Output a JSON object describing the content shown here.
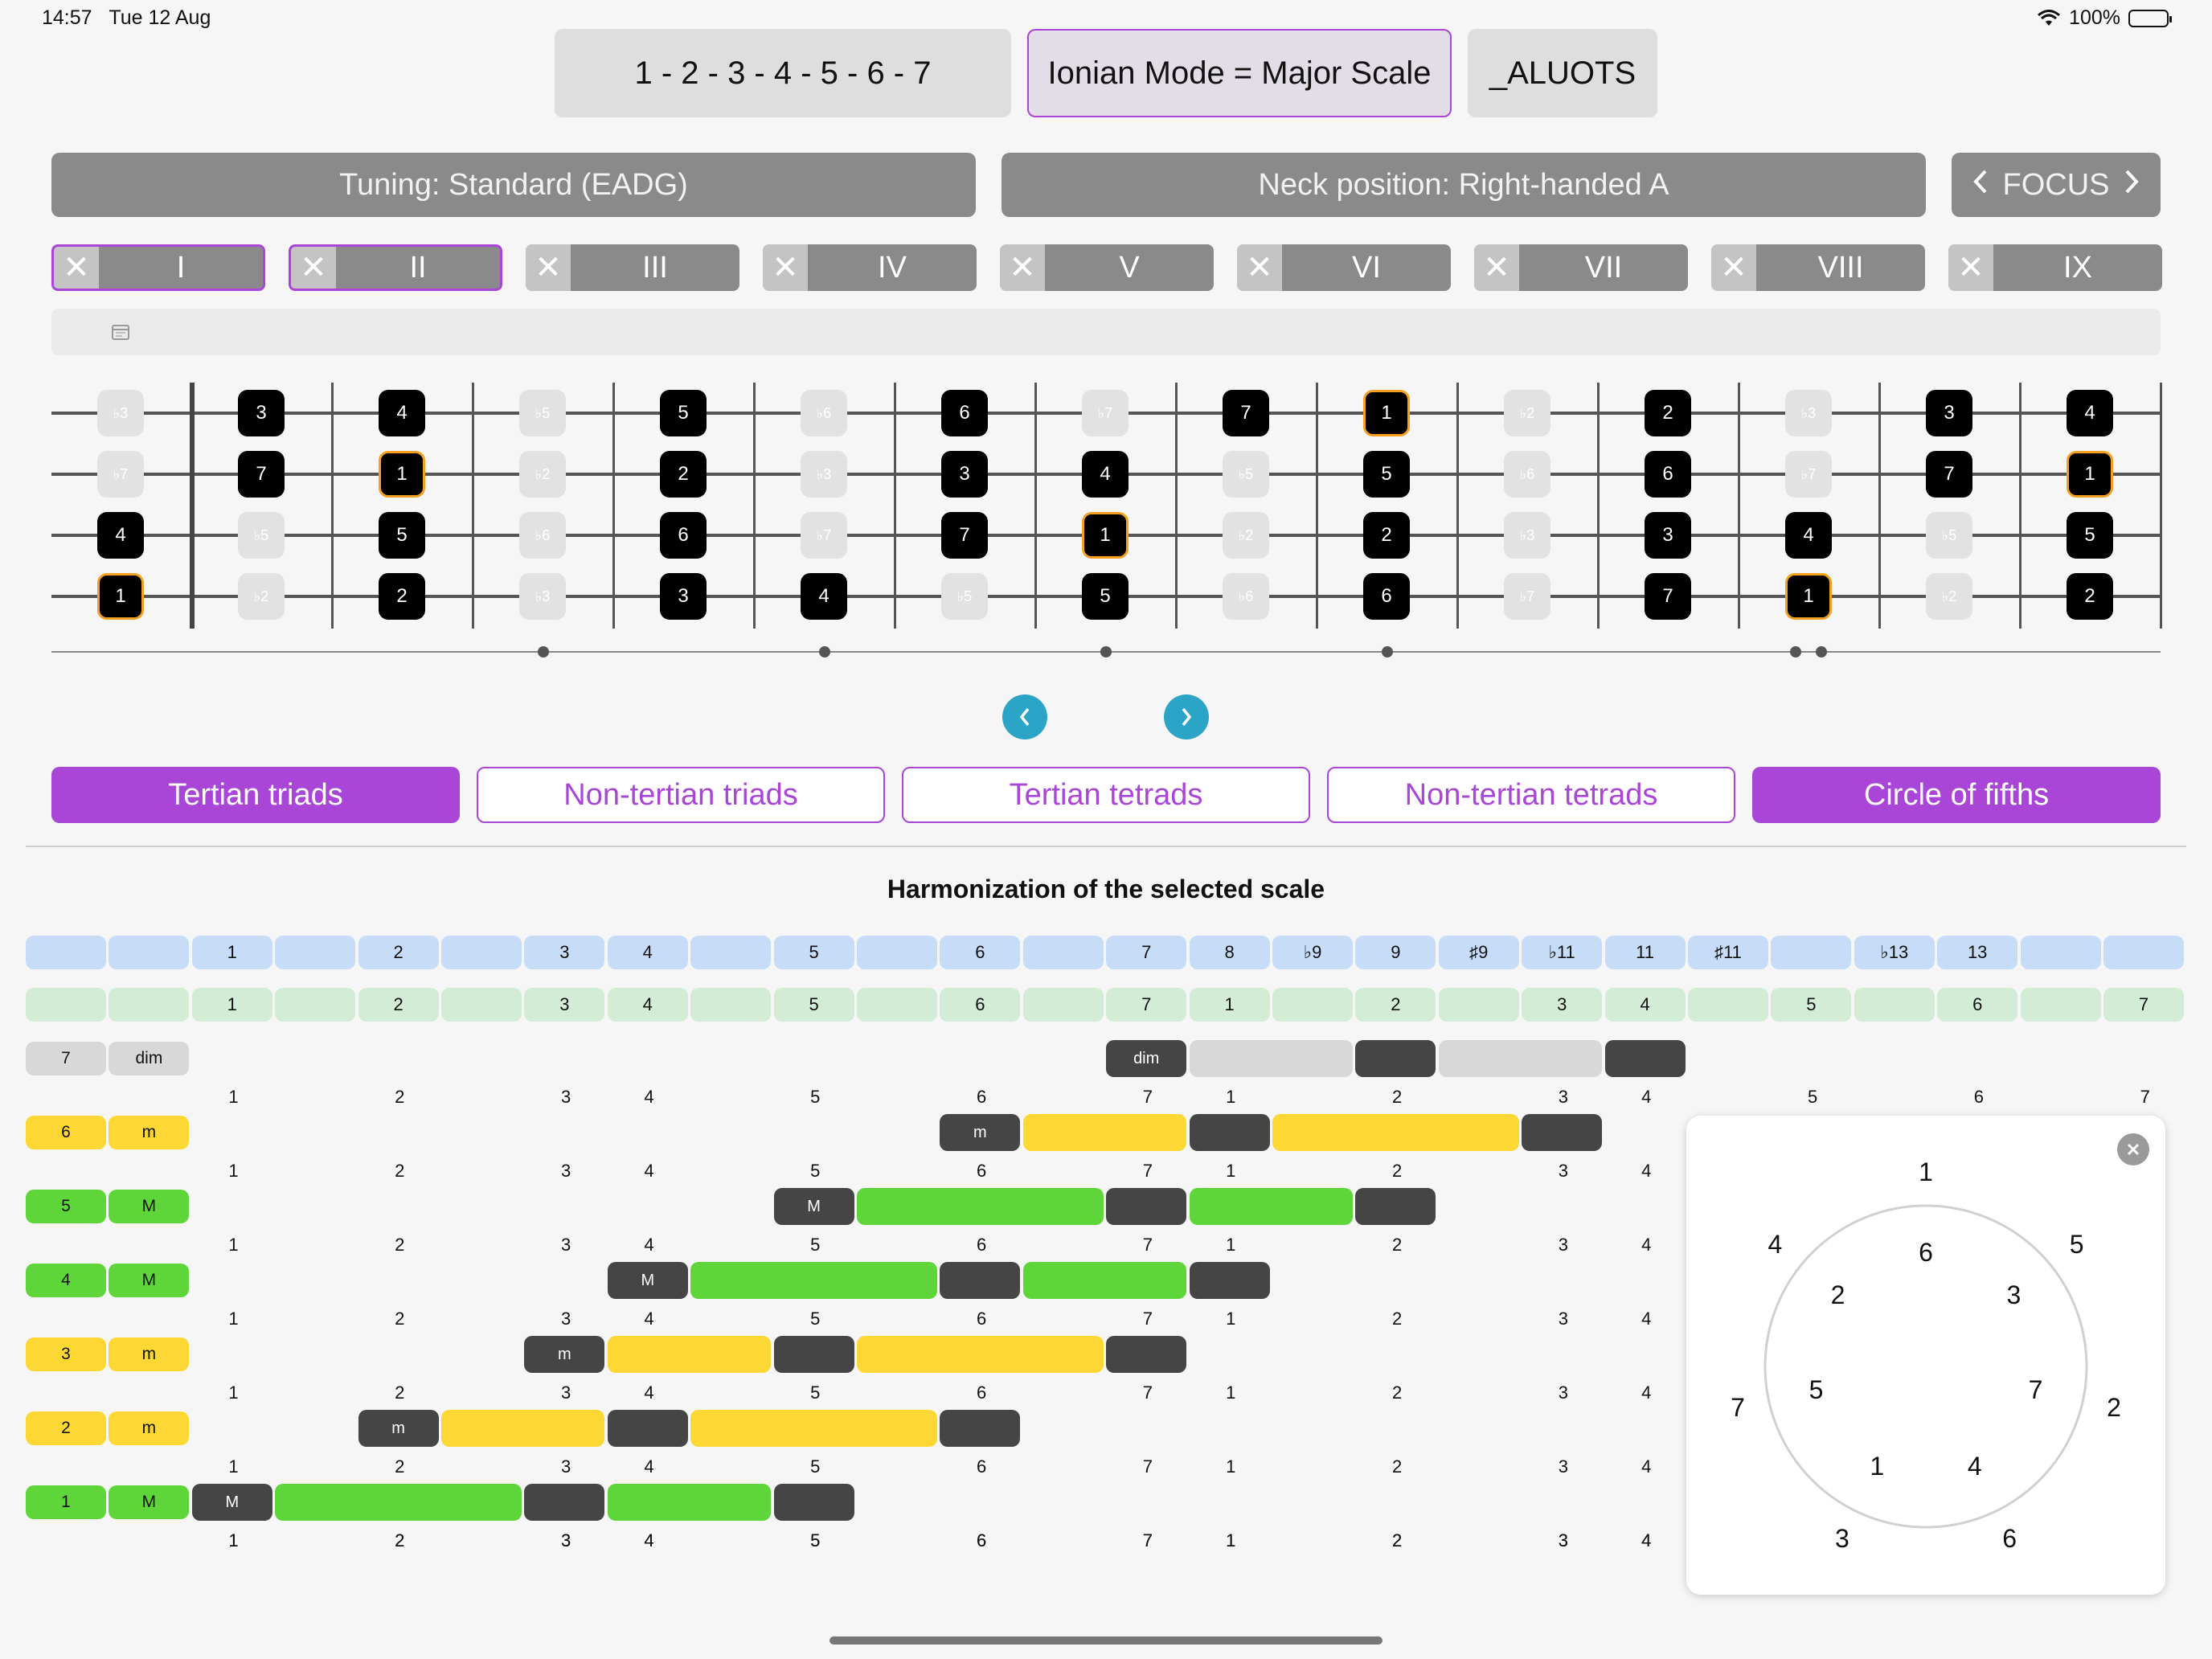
{
  "status": {
    "time": "14:57",
    "date": "Tue 12 Aug",
    "battery": "100%"
  },
  "top": {
    "formula": "1 - 2 - 3 - 4 - 5 - 6 - 7",
    "mode": "Ionian Mode = Major Scale",
    "aluots": "_ALUOTS"
  },
  "controls": {
    "tuning": "Tuning: Standard (EADG)",
    "neck": "Neck position: Right-handed A",
    "focus": "FOCUS"
  },
  "positions": [
    {
      "label": "I",
      "selected": true
    },
    {
      "label": "II",
      "selected": true
    },
    {
      "label": "III",
      "selected": false
    },
    {
      "label": "IV",
      "selected": false
    },
    {
      "label": "V",
      "selected": false
    },
    {
      "label": "VI",
      "selected": false
    },
    {
      "label": "VII",
      "selected": false
    },
    {
      "label": "VIII",
      "selected": false
    },
    {
      "label": "IX",
      "selected": false
    }
  ],
  "fretboard": {
    "strings": [
      [
        "♭3",
        "3",
        "4",
        "♭5",
        "5",
        "♭6",
        "6",
        "♭7",
        "7",
        "1",
        "♭2",
        "2",
        "♭3",
        "3",
        "4"
      ],
      [
        "♭7",
        "7",
        "1",
        "♭2",
        "2",
        "♭3",
        "3",
        "4",
        "♭5",
        "5",
        "♭6",
        "6",
        "♭7",
        "7",
        "1"
      ],
      [
        "4",
        "♭5",
        "5",
        "♭6",
        "6",
        "♭7",
        "7",
        "1",
        "♭2",
        "2",
        "♭3",
        "3",
        "4",
        "♭5",
        "5"
      ],
      [
        "1",
        "♭2",
        "2",
        "♭3",
        "3",
        "4",
        "♭5",
        "5",
        "♭6",
        "6",
        "♭7",
        "7",
        "1",
        "♭2",
        "2"
      ]
    ],
    "states": [
      [
        "off",
        "on",
        "on",
        "off",
        "on",
        "off",
        "on",
        "off",
        "on",
        "root",
        "off",
        "on",
        "off",
        "on",
        "on"
      ],
      [
        "off",
        "on",
        "root",
        "off",
        "on",
        "off",
        "on",
        "on",
        "off",
        "on",
        "off",
        "on",
        "off",
        "on",
        "root"
      ],
      [
        "on",
        "off",
        "on",
        "off",
        "on",
        "off",
        "on",
        "root",
        "off",
        "on",
        "off",
        "on",
        "on",
        "off",
        "on"
      ],
      [
        "root",
        "off",
        "on",
        "off",
        "on",
        "on",
        "off",
        "on",
        "off",
        "on",
        "off",
        "on",
        "root",
        "off",
        "on"
      ]
    ]
  },
  "tabs": [
    {
      "label": "Tertian triads",
      "active": true
    },
    {
      "label": "Non-tertian triads",
      "active": false
    },
    {
      "label": "Tertian tetrads",
      "active": false
    },
    {
      "label": "Non-tertian tetrads",
      "active": false
    },
    {
      "label": "Circle of fifths",
      "active": true
    }
  ],
  "harmonization": {
    "title": "Harmonization of the selected scale",
    "blue_row": [
      "",
      "",
      "1",
      "",
      "2",
      "",
      "3",
      "4",
      "",
      "5",
      "",
      "6",
      "",
      "7",
      "8",
      "♭9",
      "9",
      "♯9",
      "♭11",
      "11",
      "♯11",
      "",
      "♭13",
      "13",
      "",
      ""
    ],
    "green_row": [
      "",
      "",
      "1",
      "",
      "2",
      "",
      "3",
      "4",
      "",
      "5",
      "",
      "6",
      "",
      "7",
      "1",
      "",
      "2",
      "",
      "3",
      "4",
      "",
      "5",
      "",
      "6",
      "",
      "7"
    ],
    "numbers_line": [
      "1",
      "2",
      "3",
      "4",
      "5",
      "6",
      "7",
      "1",
      "2",
      "3",
      "4",
      "5",
      "6",
      "7"
    ],
    "chords": [
      {
        "degree": "7",
        "quality": "dim",
        "color": "grey",
        "bar_label": "dim"
      },
      {
        "degree": "6",
        "quality": "m",
        "color": "yellow",
        "bar_label": "m"
      },
      {
        "degree": "5",
        "quality": "M",
        "color": "green",
        "bar_label": "M"
      },
      {
        "degree": "4",
        "quality": "M",
        "color": "green",
        "bar_label": "M"
      },
      {
        "degree": "3",
        "quality": "m",
        "color": "yellow",
        "bar_label": "m"
      },
      {
        "degree": "2",
        "quality": "m",
        "color": "yellow",
        "bar_label": "m"
      },
      {
        "degree": "1",
        "quality": "M",
        "color": "green",
        "bar_label": "M"
      }
    ]
  },
  "circle_of_fifths": {
    "outer": [
      "1",
      "5",
      "2",
      "6",
      "3",
      "7",
      "4"
    ],
    "inner": [
      "6",
      "3",
      "7",
      "4",
      "1",
      "5",
      "2"
    ]
  }
}
